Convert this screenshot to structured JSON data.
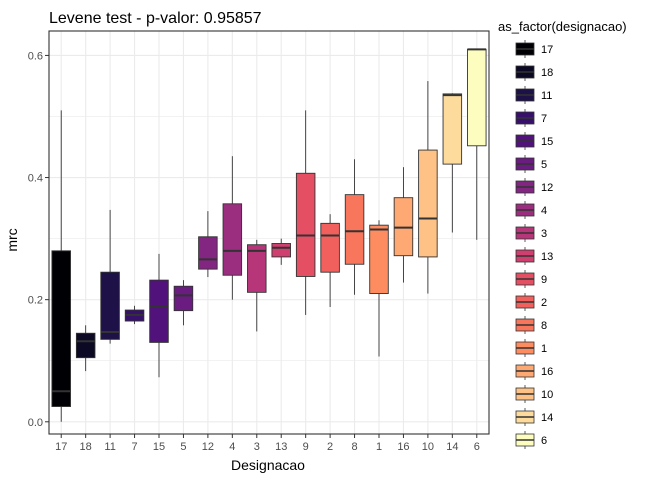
{
  "chart_data": {
    "type": "box",
    "title": "Levene test - p-valor:  0.95857",
    "xlabel": "Designacao",
    "ylabel": "mrc",
    "ylim": [
      -0.02,
      0.64
    ],
    "yticks": [
      0.0,
      0.2,
      0.4,
      0.6
    ],
    "ytick_labels": [
      "0.0",
      "0.2",
      "0.4",
      "0.6"
    ],
    "grid": true,
    "legend": {
      "title": "as_factor(designacao)",
      "position": "right"
    },
    "categories": [
      "17",
      "18",
      "11",
      "7",
      "15",
      "5",
      "12",
      "4",
      "3",
      "13",
      "9",
      "2",
      "8",
      "1",
      "16",
      "10",
      "14",
      "6"
    ],
    "boxes": [
      {
        "category": "17",
        "color": "#000004",
        "lower_whisker": 0.0,
        "q1": 0.025,
        "median": 0.05,
        "q3": 0.28,
        "upper_whisker": 0.51
      },
      {
        "category": "18",
        "color": "#0B0924",
        "lower_whisker": 0.083,
        "q1": 0.105,
        "median": 0.132,
        "q3": 0.145,
        "upper_whisker": 0.158
      },
      {
        "category": "11",
        "color": "#1D1147",
        "lower_whisker": 0.128,
        "q1": 0.135,
        "median": 0.147,
        "q3": 0.245,
        "upper_whisker": 0.347
      },
      {
        "category": "7",
        "color": "#36106B",
        "lower_whisker": 0.16,
        "q1": 0.165,
        "median": 0.175,
        "q3": 0.183,
        "upper_whisker": 0.19
      },
      {
        "category": "15",
        "color": "#51127C",
        "lower_whisker": 0.073,
        "q1": 0.13,
        "median": 0.188,
        "q3": 0.232,
        "upper_whisker": 0.275
      },
      {
        "category": "5",
        "color": "#6A1C81",
        "lower_whisker": 0.158,
        "q1": 0.182,
        "median": 0.207,
        "q3": 0.222,
        "upper_whisker": 0.232
      },
      {
        "category": "12",
        "color": "#832681",
        "lower_whisker": 0.237,
        "q1": 0.25,
        "median": 0.266,
        "q3": 0.303,
        "upper_whisker": 0.345
      },
      {
        "category": "4",
        "color": "#9C2E7F",
        "lower_whisker": 0.2,
        "q1": 0.24,
        "median": 0.28,
        "q3": 0.357,
        "upper_whisker": 0.435
      },
      {
        "category": "3",
        "color": "#B63679",
        "lower_whisker": 0.148,
        "q1": 0.212,
        "median": 0.28,
        "q3": 0.29,
        "upper_whisker": 0.298
      },
      {
        "category": "13",
        "color": "#CF4070",
        "lower_whisker": 0.257,
        "q1": 0.27,
        "median": 0.285,
        "q3": 0.292,
        "upper_whisker": 0.3
      },
      {
        "category": "9",
        "color": "#E44F64",
        "lower_whisker": 0.175,
        "q1": 0.238,
        "median": 0.305,
        "q3": 0.407,
        "upper_whisker": 0.51
      },
      {
        "category": "2",
        "color": "#F1605D",
        "lower_whisker": 0.188,
        "q1": 0.245,
        "median": 0.305,
        "q3": 0.325,
        "upper_whisker": 0.34
      },
      {
        "category": "8",
        "color": "#F8765C",
        "lower_whisker": 0.208,
        "q1": 0.258,
        "median": 0.312,
        "q3": 0.372,
        "upper_whisker": 0.43
      },
      {
        "category": "1",
        "color": "#FD8D60",
        "lower_whisker": 0.107,
        "q1": 0.21,
        "median": 0.315,
        "q3": 0.322,
        "upper_whisker": 0.33
      },
      {
        "category": "16",
        "color": "#FEA873",
        "lower_whisker": 0.228,
        "q1": 0.272,
        "median": 0.318,
        "q3": 0.367,
        "upper_whisker": 0.417
      },
      {
        "category": "10",
        "color": "#FEC287",
        "lower_whisker": 0.21,
        "q1": 0.27,
        "median": 0.333,
        "q3": 0.445,
        "upper_whisker": 0.558
      },
      {
        "category": "14",
        "color": "#FDDB9D",
        "lower_whisker": 0.31,
        "q1": 0.422,
        "median": 0.535,
        "q3": 0.537,
        "upper_whisker": 0.538
      },
      {
        "category": "6",
        "color": "#FCFDBF",
        "lower_whisker": 0.298,
        "q1": 0.452,
        "median": 0.61,
        "q3": 0.61,
        "upper_whisker": 0.61
      }
    ]
  }
}
